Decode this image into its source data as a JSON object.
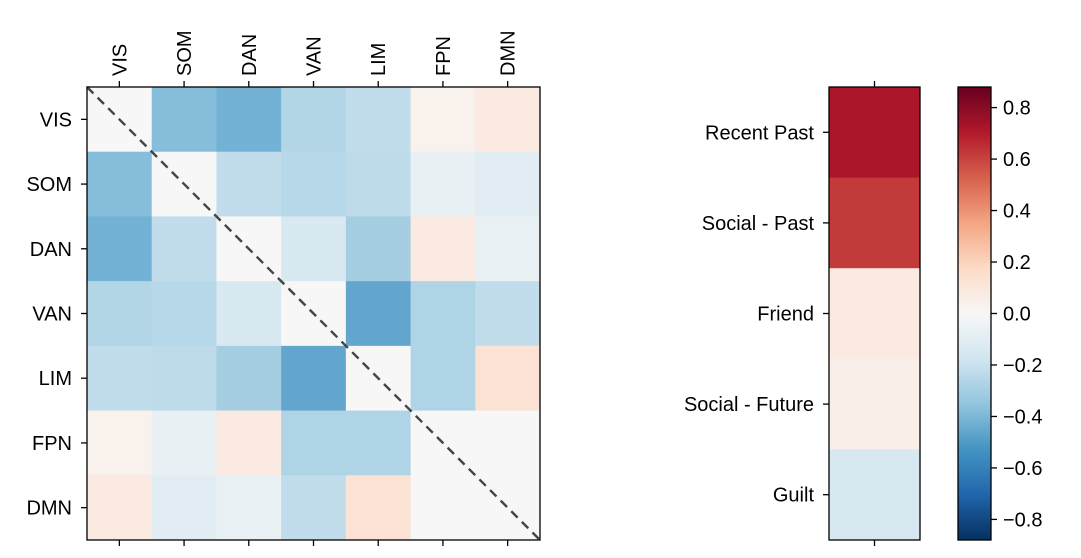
{
  "chart_data": [
    {
      "type": "heatmap",
      "title": "",
      "xlabel": "",
      "ylabel": "",
      "rows": [
        "VIS",
        "SOM",
        "DAN",
        "VAN",
        "LIM",
        "FPN",
        "DMN"
      ],
      "columns": [
        "VIS",
        "SOM",
        "DAN",
        "VAN",
        "LIM",
        "FPN",
        "DMN"
      ],
      "values": [
        [
          0.0,
          -0.38,
          -0.42,
          -0.26,
          -0.22,
          0.04,
          0.08
        ],
        [
          -0.38,
          0.0,
          -0.22,
          -0.25,
          -0.23,
          -0.07,
          -0.1
        ],
        [
          -0.42,
          -0.22,
          0.0,
          -0.14,
          -0.3,
          0.08,
          -0.06
        ],
        [
          -0.26,
          -0.25,
          -0.14,
          0.0,
          -0.46,
          -0.27,
          -0.22
        ],
        [
          -0.22,
          -0.23,
          -0.3,
          -0.46,
          0.0,
          -0.27,
          0.13
        ],
        [
          0.04,
          -0.07,
          0.08,
          -0.27,
          -0.27,
          0.0,
          0.0
        ],
        [
          0.08,
          -0.1,
          -0.06,
          -0.22,
          0.13,
          0.0,
          0.0
        ]
      ],
      "diagonal_line": "dashed",
      "colormap": "RdBu_r",
      "vlim": [
        -0.88,
        0.88
      ]
    },
    {
      "type": "heatmap",
      "rows": [
        "Recent Past",
        "Social - Past",
        "Friend",
        "Social - Future",
        "Guilt"
      ],
      "values": [
        0.72,
        0.62,
        0.08,
        0.05,
        -0.15
      ],
      "colormap": "RdBu_r",
      "vlim": [
        -0.88,
        0.88
      ]
    }
  ],
  "colorbar": {
    "ticks": [
      0.8,
      0.6,
      0.4,
      0.2,
      0.0,
      -0.2,
      -0.4,
      -0.6,
      -0.8
    ],
    "tick_labels": [
      "0.8",
      "0.6",
      "0.4",
      "0.2",
      "0.0",
      "−0.2",
      "−0.4",
      "−0.6",
      "−0.8"
    ],
    "range": [
      -0.88,
      0.88
    ]
  }
}
